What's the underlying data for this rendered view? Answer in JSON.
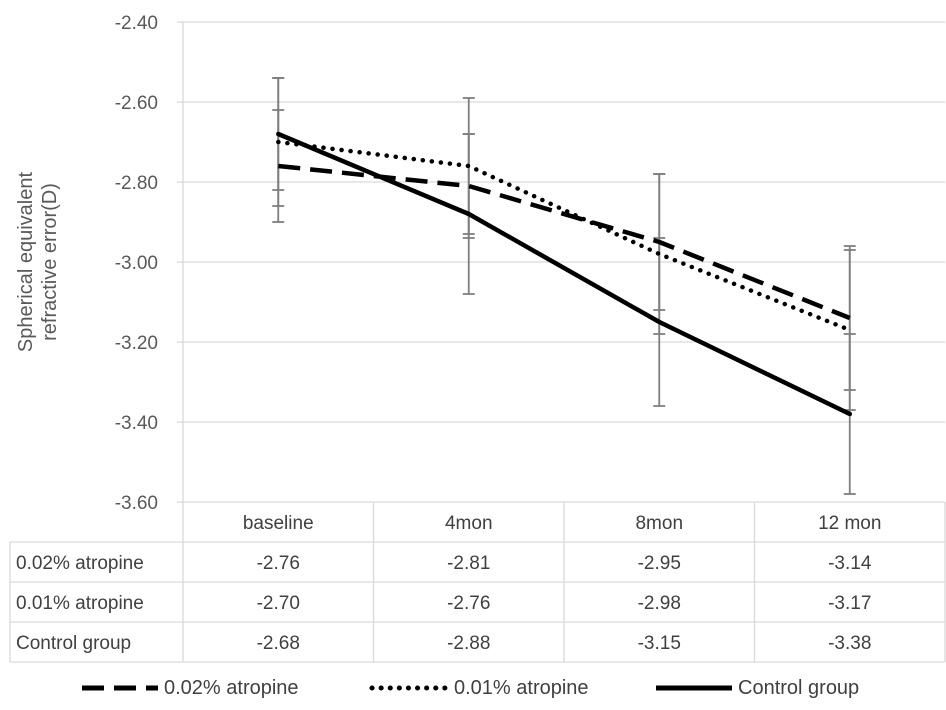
{
  "chart_data": {
    "type": "line",
    "ylabel_lines": [
      "Spherical equivalent",
      "refractive error(D)"
    ],
    "categories": [
      "baseline",
      "4mon",
      "8mon",
      "12 mon"
    ],
    "y_ticks": [
      "-2.40",
      "-2.60",
      "-2.80",
      "-3.00",
      "-3.20",
      "-3.40",
      "-3.60"
    ],
    "ylim": [
      -3.6,
      -2.4
    ],
    "grid": true,
    "legend_position": "bottom",
    "data_table": true,
    "series": [
      {
        "name": "0.02% atropine",
        "dash": "dashed",
        "values": [
          -2.76,
          -2.81,
          -2.95,
          -3.14
        ],
        "value_labels": [
          "-2.76",
          "-2.81",
          "-2.95",
          "-3.14"
        ],
        "errors": [
          0.14,
          0.13,
          0.17,
          0.18
        ]
      },
      {
        "name": "0.01% atropine",
        "dash": "dotted",
        "values": [
          -2.7,
          -2.76,
          -2.98,
          -3.17
        ],
        "value_labels": [
          "-2.70",
          "-2.76",
          "-2.98",
          "-3.17"
        ],
        "errors": [
          0.16,
          0.17,
          0.2,
          0.2
        ]
      },
      {
        "name": "Control group",
        "dash": "solid",
        "values": [
          -2.68,
          -2.88,
          -3.15,
          -3.38
        ],
        "value_labels": [
          "-2.68",
          "-2.88",
          "-3.15",
          "-3.38"
        ],
        "errors": [
          0.14,
          0.2,
          0.21,
          0.2
        ]
      }
    ]
  },
  "colors": {
    "line": "#000000",
    "grid": "#d9d9d9",
    "error_bar": "#7f7f7f",
    "text": "#404040"
  }
}
